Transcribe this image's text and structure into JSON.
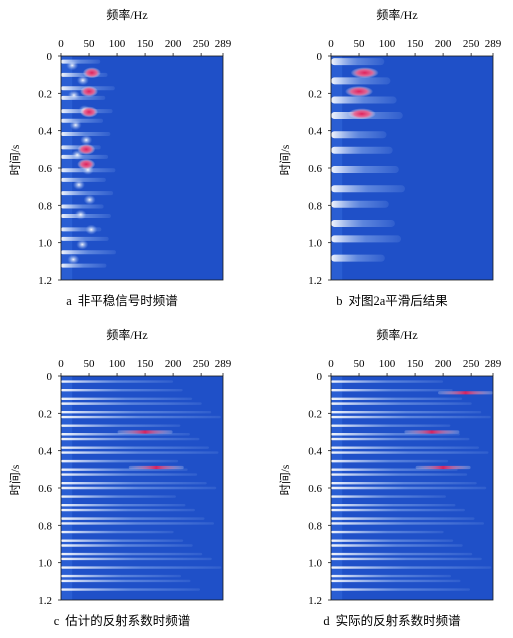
{
  "charts": [
    {
      "id": "a",
      "caption_letter": "a",
      "caption_text": "非平稳信号时频谱",
      "style": "raw"
    },
    {
      "id": "b",
      "caption_letter": "b",
      "caption_text": "对图2a平滑后结果",
      "style": "smooth"
    },
    {
      "id": "c",
      "caption_letter": "c",
      "caption_text": "估计的反射系数时频谱",
      "style": "estimated"
    },
    {
      "id": "d",
      "caption_letter": "d",
      "caption_text": "实际的反射系数时频谱",
      "style": "actual"
    }
  ],
  "colors": {
    "background": "#1f50c8",
    "low": "#2a5ed3",
    "mid": "#8fb0ee",
    "high": "#ffffff",
    "peak": "#e0205a"
  },
  "chart_data": [
    {
      "type": "heatmap",
      "title": "",
      "xlabel": "频率/Hz",
      "ylabel": "时间/s",
      "x_ticks": [
        "0",
        "50",
        "100",
        "150",
        "200",
        "250",
        "289"
      ],
      "x_tick_values": [
        0,
        50,
        100,
        150,
        200,
        250,
        289
      ],
      "y_ticks": [
        "0",
        "0.2",
        "0.4",
        "0.6",
        "0.8",
        "1.0",
        "1.2"
      ],
      "y_tick_values": [
        0,
        0.2,
        0.4,
        0.6,
        0.8,
        1.0,
        1.2
      ],
      "xlim": [
        0,
        289
      ],
      "ylim": [
        0,
        1.2
      ],
      "y_inverted": true,
      "x_axis_position": "top",
      "colormap": "blue-white-red",
      "peaks": [
        {
          "t": 0.09,
          "f": 55
        },
        {
          "t": 0.19,
          "f": 50
        },
        {
          "t": 0.3,
          "f": 50
        },
        {
          "t": 0.5,
          "f": 45
        },
        {
          "t": 0.58,
          "f": 45
        }
      ]
    },
    {
      "type": "heatmap",
      "title": "",
      "xlabel": "频率/Hz",
      "ylabel": "时间/s",
      "x_ticks": [
        "0",
        "50",
        "100",
        "150",
        "200",
        "250",
        "289"
      ],
      "x_tick_values": [
        0,
        50,
        100,
        150,
        200,
        250,
        289
      ],
      "y_ticks": [
        "0",
        "0.2",
        "0.4",
        "0.6",
        "0.8",
        "1.0",
        "1.2"
      ],
      "y_tick_values": [
        0,
        0.2,
        0.4,
        0.6,
        0.8,
        1.0,
        1.2
      ],
      "xlim": [
        0,
        289
      ],
      "ylim": [
        0,
        1.2
      ],
      "y_inverted": true,
      "x_axis_position": "top",
      "colormap": "blue-white-red",
      "peaks": [
        {
          "t": 0.09,
          "f": 60
        },
        {
          "t": 0.19,
          "f": 50
        },
        {
          "t": 0.31,
          "f": 55
        }
      ]
    },
    {
      "type": "heatmap",
      "title": "",
      "xlabel": "频率/Hz",
      "ylabel": "时间/s",
      "x_ticks": [
        "0",
        "50",
        "100",
        "150",
        "200",
        "250",
        "289"
      ],
      "x_tick_values": [
        0,
        50,
        100,
        150,
        200,
        250,
        289
      ],
      "y_ticks": [
        "0",
        "0.2",
        "0.4",
        "0.6",
        "0.8",
        "1.0",
        "1.2"
      ],
      "y_tick_values": [
        0,
        0.2,
        0.4,
        0.6,
        0.8,
        1.0,
        1.2
      ],
      "xlim": [
        0,
        289
      ],
      "ylim": [
        0,
        1.2
      ],
      "y_inverted": true,
      "x_axis_position": "top",
      "colormap": "blue-white-red",
      "peaks": [
        {
          "t": 0.3,
          "f": 150
        },
        {
          "t": 0.49,
          "f": 170
        }
      ]
    },
    {
      "type": "heatmap",
      "title": "",
      "xlabel": "频率/Hz",
      "ylabel": "时间/s",
      "x_ticks": [
        "0",
        "50",
        "100",
        "150",
        "200",
        "250",
        "289"
      ],
      "x_tick_values": [
        0,
        50,
        100,
        150,
        200,
        250,
        289
      ],
      "y_ticks": [
        "0",
        "0.2",
        "0.4",
        "0.6",
        "0.8",
        "1.0",
        "1.2"
      ],
      "y_tick_values": [
        0,
        0.2,
        0.4,
        0.6,
        0.8,
        1.0,
        1.2
      ],
      "xlim": [
        0,
        289
      ],
      "ylim": [
        0,
        1.2
      ],
      "y_inverted": true,
      "x_axis_position": "top",
      "colormap": "blue-white-red",
      "peaks": [
        {
          "t": 0.3,
          "f": 180
        },
        {
          "t": 0.09,
          "f": 240
        },
        {
          "t": 0.49,
          "f": 200
        }
      ]
    }
  ]
}
